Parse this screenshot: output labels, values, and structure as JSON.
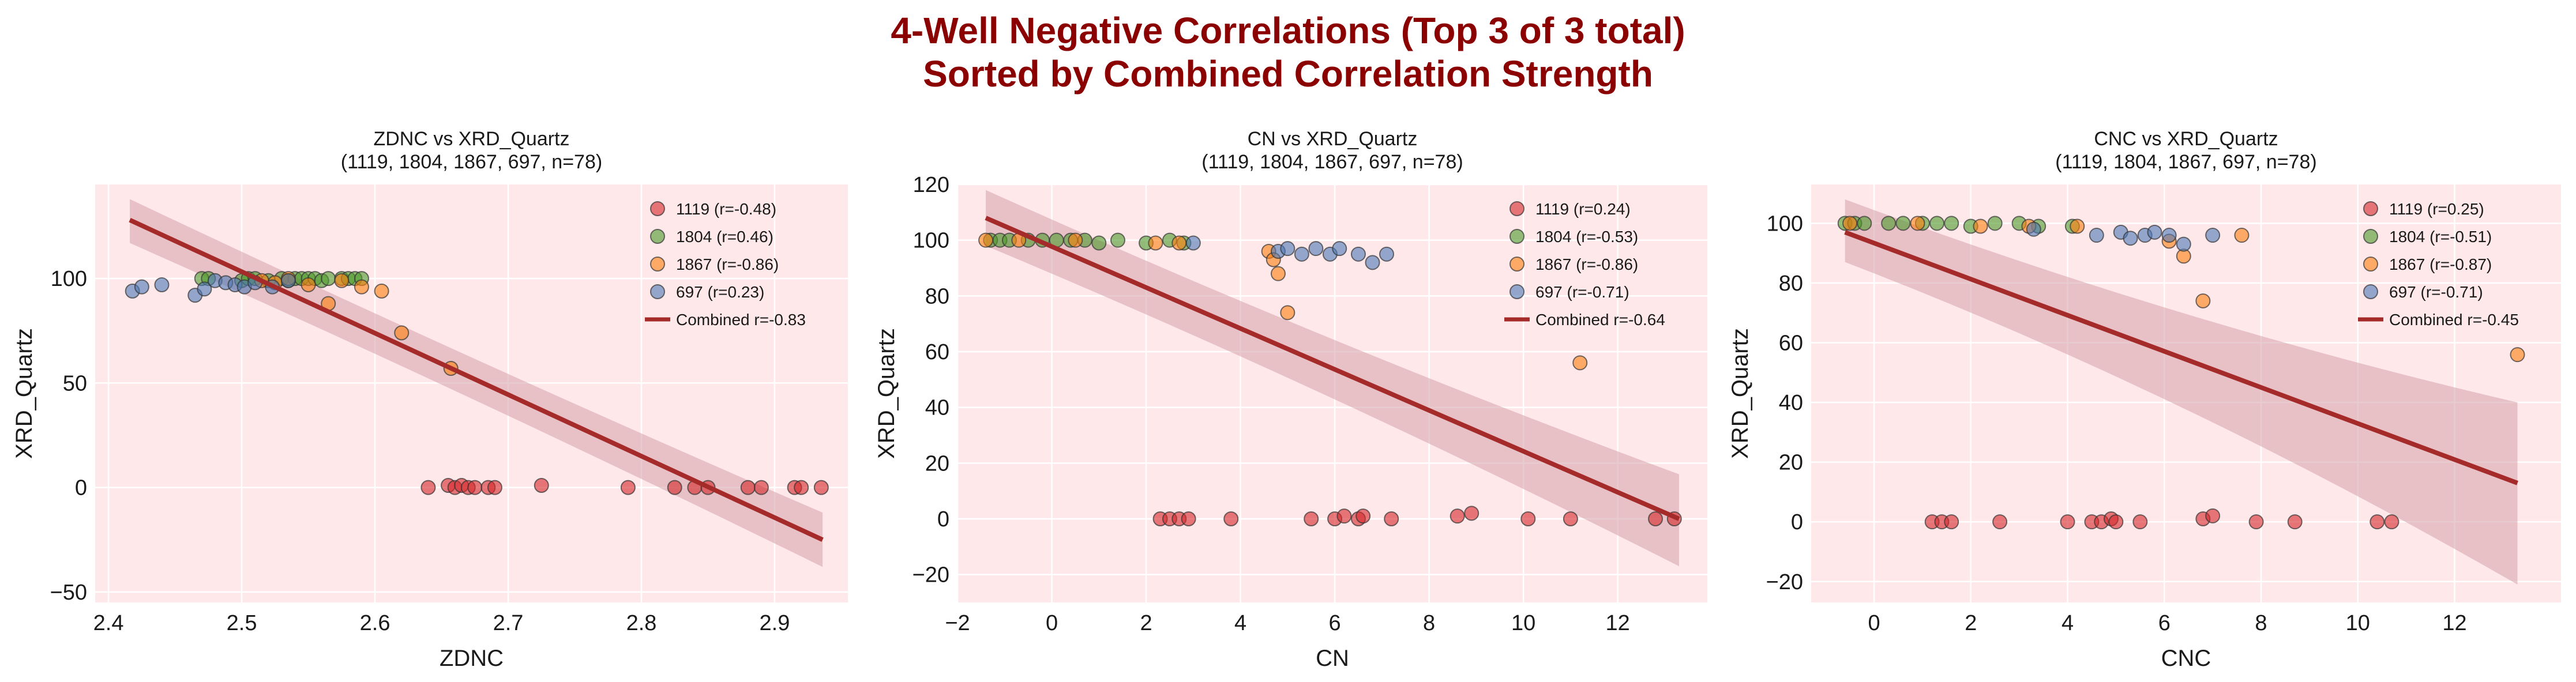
{
  "figure": {
    "title_line1": "4-Well Negative Correlations (Top 3 of 3 total)",
    "title_line2": "Sorted by Combined Correlation Strength",
    "title_color": "#8b0000",
    "panel_bg": "#ffe8ea",
    "grid_color": "#ffffff",
    "regression_color": "#a52a2a",
    "band_color": "#d4a0a8"
  },
  "chart_data": [
    {
      "type": "scatter",
      "title": "ZDNC vs XRD_Quartz",
      "subtitle": "(1119, 1804, 1867, 697, n=78)",
      "xlabel": "ZDNC",
      "ylabel": "XRD_Quartz",
      "xlim": [
        2.39,
        2.955
      ],
      "ylim": [
        -55,
        145
      ],
      "xticks": [
        2.4,
        2.5,
        2.6,
        2.7,
        2.8,
        2.9
      ],
      "xtick_labels": [
        "2.4",
        "2.5",
        "2.6",
        "2.7",
        "2.8",
        "2.9"
      ],
      "yticks": [
        -50,
        0,
        50,
        100
      ],
      "ytick_labels": [
        "−50",
        "0",
        "50",
        "100"
      ],
      "legend_position": "upper right",
      "series": [
        {
          "name": "1119 (r=-0.48)",
          "color": "#d62728",
          "points": [
            [
              2.64,
              0
            ],
            [
              2.655,
              1
            ],
            [
              2.66,
              0
            ],
            [
              2.665,
              1
            ],
            [
              2.67,
              0
            ],
            [
              2.675,
              0
            ],
            [
              2.685,
              0
            ],
            [
              2.69,
              0
            ],
            [
              2.725,
              1
            ],
            [
              2.79,
              0
            ],
            [
              2.825,
              0
            ],
            [
              2.84,
              0
            ],
            [
              2.85,
              0
            ],
            [
              2.88,
              0
            ],
            [
              2.89,
              0
            ],
            [
              2.915,
              0
            ],
            [
              2.92,
              0
            ],
            [
              2.935,
              0
            ]
          ]
        },
        {
          "name": "1804 (r=0.46)",
          "color": "#4b9a2a",
          "points": [
            [
              2.47,
              100
            ],
            [
              2.475,
              100
            ],
            [
              2.5,
              99
            ],
            [
              2.505,
              100
            ],
            [
              2.51,
              100
            ],
            [
              2.52,
              99
            ],
            [
              2.53,
              100
            ],
            [
              2.535,
              99
            ],
            [
              2.54,
              100
            ],
            [
              2.545,
              100
            ],
            [
              2.55,
              100
            ],
            [
              2.555,
              100
            ],
            [
              2.56,
              99
            ],
            [
              2.565,
              100
            ],
            [
              2.575,
              100
            ],
            [
              2.58,
              100
            ],
            [
              2.585,
              100
            ],
            [
              2.59,
              100
            ]
          ]
        },
        {
          "name": "1867 (r=-0.86)",
          "color": "#ff7f0e",
          "points": [
            [
              2.515,
              99
            ],
            [
              2.525,
              98
            ],
            [
              2.535,
              100
            ],
            [
              2.55,
              97
            ],
            [
              2.565,
              88
            ],
            [
              2.575,
              99
            ],
            [
              2.59,
              96
            ],
            [
              2.605,
              94
            ],
            [
              2.62,
              74
            ],
            [
              2.657,
              57
            ]
          ]
        },
        {
          "name": "697 (r=0.23)",
          "color": "#4c78b5",
          "points": [
            [
              2.418,
              94
            ],
            [
              2.425,
              96
            ],
            [
              2.44,
              97
            ],
            [
              2.465,
              92
            ],
            [
              2.472,
              95
            ],
            [
              2.48,
              99
            ],
            [
              2.488,
              98
            ],
            [
              2.495,
              97
            ],
            [
              2.502,
              96
            ],
            [
              2.51,
              98
            ],
            [
              2.523,
              96
            ],
            [
              2.535,
              99
            ]
          ]
        }
      ],
      "combined": {
        "label": "Combined r=-0.83",
        "x": [
          2.416,
          2.936
        ],
        "y": [
          128,
          -25
        ],
        "band_upper": [
          138,
          -12
        ],
        "band_lower": [
          117,
          -38
        ],
        "band_mid_half": 5
      }
    },
    {
      "type": "scatter",
      "title": "CN vs XRD_Quartz",
      "subtitle": "(1119, 1804, 1867, 697, n=78)",
      "xlabel": "CN",
      "ylabel": "XRD_Quartz",
      "xlim": [
        -2.0,
        13.9
      ],
      "ylim": [
        -30,
        120
      ],
      "xticks": [
        -2,
        0,
        2,
        4,
        6,
        8,
        10,
        12
      ],
      "xtick_labels": [
        "−2",
        "0",
        "2",
        "4",
        "6",
        "8",
        "10",
        "12"
      ],
      "yticks": [
        -20,
        0,
        20,
        40,
        60,
        80,
        100,
        120
      ],
      "ytick_labels": [
        "−20",
        "0",
        "20",
        "40",
        "60",
        "80",
        "100",
        "120"
      ],
      "legend_position": "upper right",
      "series": [
        {
          "name": "1119 (r=0.24)",
          "color": "#d62728",
          "points": [
            [
              2.3,
              0
            ],
            [
              2.5,
              0
            ],
            [
              2.7,
              0
            ],
            [
              2.9,
              0
            ],
            [
              3.8,
              0
            ],
            [
              5.5,
              0
            ],
            [
              6.0,
              0
            ],
            [
              6.2,
              1
            ],
            [
              6.5,
              0
            ],
            [
              6.6,
              1
            ],
            [
              7.2,
              0
            ],
            [
              8.6,
              1
            ],
            [
              8.9,
              2
            ],
            [
              10.1,
              0
            ],
            [
              11.0,
              0
            ],
            [
              12.8,
              0
            ],
            [
              13.2,
              0
            ]
          ]
        },
        {
          "name": "1804 (r=-0.53)",
          "color": "#4b9a2a",
          "points": [
            [
              -1.3,
              100
            ],
            [
              -1.1,
              100
            ],
            [
              -0.9,
              100
            ],
            [
              -0.5,
              100
            ],
            [
              -0.2,
              100
            ],
            [
              0.1,
              100
            ],
            [
              0.4,
              100
            ],
            [
              0.7,
              100
            ],
            [
              1.0,
              99
            ],
            [
              1.4,
              100
            ],
            [
              2.0,
              99
            ],
            [
              2.5,
              100
            ],
            [
              2.8,
              99
            ]
          ]
        },
        {
          "name": "1867 (r=-0.86)",
          "color": "#ff7f0e",
          "points": [
            [
              -1.4,
              100
            ],
            [
              -0.7,
              100
            ],
            [
              0.5,
              100
            ],
            [
              2.2,
              99
            ],
            [
              2.7,
              99
            ],
            [
              4.6,
              96
            ],
            [
              4.7,
              93
            ],
            [
              4.8,
              88
            ],
            [
              5.0,
              74
            ],
            [
              11.2,
              56
            ]
          ]
        },
        {
          "name": "697 (r=-0.71)",
          "color": "#4c78b5",
          "points": [
            [
              3.0,
              99
            ],
            [
              4.8,
              96
            ],
            [
              5.0,
              97
            ],
            [
              5.3,
              95
            ],
            [
              5.6,
              97
            ],
            [
              5.9,
              95
            ],
            [
              6.1,
              97
            ],
            [
              6.5,
              95
            ],
            [
              6.8,
              92
            ],
            [
              7.1,
              95
            ]
          ]
        }
      ],
      "combined": {
        "label": "Combined r=-0.64",
        "x": [
          -1.4,
          13.3
        ],
        "y": [
          108,
          0
        ],
        "band_upper": [
          118,
          16
        ],
        "band_lower": [
          98,
          -17
        ],
        "band_mid_half": 5
      }
    },
    {
      "type": "scatter",
      "title": "CNC vs XRD_Quartz",
      "subtitle": "(1119, 1804, 1867, 697, n=78)",
      "xlabel": "CNC",
      "ylabel": "XRD_Quartz",
      "xlim": [
        -1.3,
        14.2
      ],
      "ylim": [
        -27,
        113
      ],
      "xticks": [
        0,
        2,
        4,
        6,
        8,
        10,
        12
      ],
      "xtick_labels": [
        "0",
        "2",
        "4",
        "6",
        "8",
        "10",
        "12"
      ],
      "yticks": [
        -20,
        0,
        20,
        40,
        60,
        80,
        100
      ],
      "ytick_labels": [
        "−20",
        "0",
        "20",
        "40",
        "60",
        "80",
        "100"
      ],
      "legend_position": "upper right",
      "series": [
        {
          "name": "1119 (r=0.25)",
          "color": "#d62728",
          "points": [
            [
              1.2,
              0
            ],
            [
              1.4,
              0
            ],
            [
              1.6,
              0
            ],
            [
              2.6,
              0
            ],
            [
              4.0,
              0
            ],
            [
              4.5,
              0
            ],
            [
              4.7,
              0
            ],
            [
              4.9,
              1
            ],
            [
              5.0,
              0
            ],
            [
              5.5,
              0
            ],
            [
              6.8,
              1
            ],
            [
              7.0,
              2
            ],
            [
              7.9,
              0
            ],
            [
              8.7,
              0
            ],
            [
              10.4,
              0
            ],
            [
              10.7,
              0
            ]
          ]
        },
        {
          "name": "1804 (r=-0.51)",
          "color": "#4b9a2a",
          "points": [
            [
              -0.6,
              100
            ],
            [
              -0.4,
              100
            ],
            [
              -0.2,
              100
            ],
            [
              0.3,
              100
            ],
            [
              0.6,
              100
            ],
            [
              1.0,
              100
            ],
            [
              1.3,
              100
            ],
            [
              1.6,
              100
            ],
            [
              2.0,
              99
            ],
            [
              2.5,
              100
            ],
            [
              3.0,
              100
            ],
            [
              3.4,
              99
            ],
            [
              4.1,
              99
            ]
          ]
        },
        {
          "name": "1867 (r=-0.87)",
          "color": "#ff7f0e",
          "points": [
            [
              -0.5,
              100
            ],
            [
              0.9,
              100
            ],
            [
              2.2,
              99
            ],
            [
              3.2,
              99
            ],
            [
              4.2,
              99
            ],
            [
              6.1,
              94
            ],
            [
              6.4,
              89
            ],
            [
              6.8,
              74
            ],
            [
              7.6,
              96
            ],
            [
              13.3,
              56
            ]
          ]
        },
        {
          "name": "697 (r=-0.71)",
          "color": "#4c78b5",
          "points": [
            [
              3.3,
              98
            ],
            [
              4.6,
              96
            ],
            [
              5.1,
              97
            ],
            [
              5.3,
              95
            ],
            [
              5.6,
              96
            ],
            [
              5.8,
              97
            ],
            [
              6.1,
              96
            ],
            [
              6.4,
              93
            ],
            [
              7.0,
              96
            ]
          ]
        }
      ],
      "combined": {
        "label": "Combined r=-0.45",
        "x": [
          -0.6,
          13.3
        ],
        "y": [
          97,
          13
        ],
        "band_upper": [
          108,
          40
        ],
        "band_lower": [
          87,
          -21
        ],
        "band_mid_half": 7
      }
    }
  ]
}
